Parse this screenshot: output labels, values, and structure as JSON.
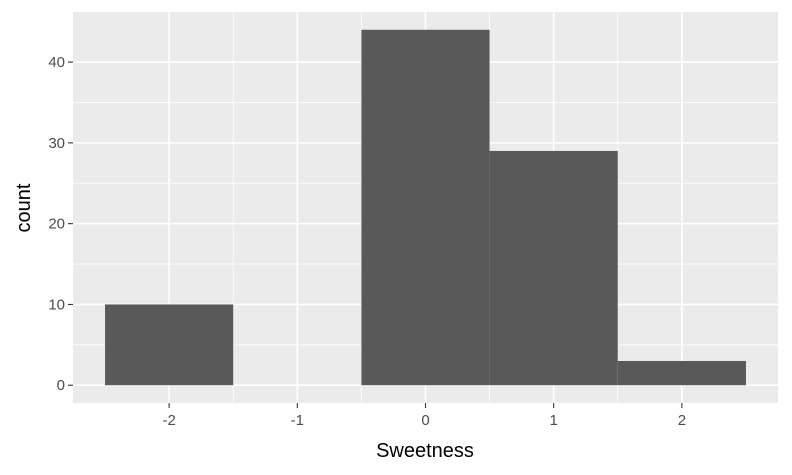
{
  "chart_data": {
    "type": "bar",
    "subtype": "histogram",
    "title": "",
    "xlabel": "Sweetness",
    "ylabel": "count",
    "bin_width": 1,
    "bins": [
      {
        "center": -2,
        "count": 10
      },
      {
        "center": -1,
        "count": 0
      },
      {
        "center": 0,
        "count": 44
      },
      {
        "center": 1,
        "count": 29
      },
      {
        "center": 2,
        "count": 3
      }
    ],
    "xlim": [
      -2.75,
      2.75
    ],
    "ylim": [
      -2.2,
      46.2
    ],
    "x_ticks": [
      -2,
      -1,
      0,
      1,
      2
    ],
    "x_tick_labels": [
      "-2",
      "-1",
      "0",
      "1",
      "2"
    ],
    "y_ticks": [
      0,
      10,
      20,
      30,
      40
    ],
    "y_tick_labels": [
      "0",
      "10",
      "20",
      "30",
      "40"
    ],
    "grid": true,
    "legend": "none",
    "colors": {
      "panel": "#ebebeb",
      "grid": "#ffffff",
      "bar": "#595959",
      "tick": "#333333"
    }
  }
}
